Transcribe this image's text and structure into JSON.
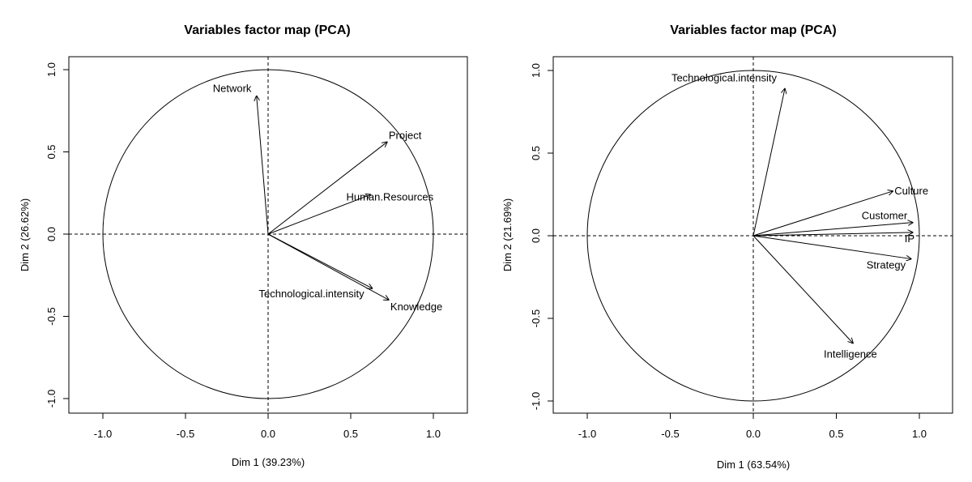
{
  "chart_data": [
    {
      "type": "scatter",
      "title": "Variables factor map (PCA)",
      "xlabel": "Dim 1 (39.23%)",
      "ylabel": "Dim 2 (26.62%)",
      "xlim": [
        -1.2,
        1.2
      ],
      "ylim": [
        -1.1,
        1.1
      ],
      "x_ticks": [
        -1.0,
        -0.5,
        0.0,
        0.5,
        1.0
      ],
      "y_ticks": [
        -1.0,
        -0.5,
        0.0,
        0.5,
        1.0
      ],
      "x_tick_labels": [
        "-1.0",
        "-0.5",
        "0.0",
        "0.5",
        "1.0"
      ],
      "y_tick_labels": [
        "-1.0",
        "-0.5",
        "0.0",
        "0.5",
        "1.0"
      ],
      "unit_circle": true,
      "variables": [
        {
          "name": "Network",
          "x": -0.07,
          "y": 0.84
        },
        {
          "name": "Project",
          "x": 0.72,
          "y": 0.56
        },
        {
          "name": "Human.Resources",
          "x": 0.62,
          "y": 0.24
        },
        {
          "name": "Technological.intensity",
          "x": 0.63,
          "y": -0.33
        },
        {
          "name": "Knowledge",
          "x": 0.73,
          "y": -0.4
        }
      ]
    },
    {
      "type": "scatter",
      "title": "Variables factor map (PCA)",
      "xlabel": "Dim 1 (63.54%)",
      "ylabel": "Dim 2 (21.69%)",
      "xlim": [
        -1.2,
        1.2
      ],
      "ylim": [
        -1.1,
        1.1
      ],
      "x_ticks": [
        -1.0,
        -0.5,
        0.0,
        0.5,
        1.0
      ],
      "y_ticks": [
        -1.0,
        -0.5,
        0.0,
        0.5,
        1.0
      ],
      "x_tick_labels": [
        "-1.0",
        "-0.5",
        "0.0",
        "0.5",
        "1.0"
      ],
      "y_tick_labels": [
        "-1.0",
        "-0.5",
        "0.0",
        "0.5",
        "1.0"
      ],
      "unit_circle": true,
      "variables": [
        {
          "name": "Technological.intensity",
          "x": 0.19,
          "y": 0.89
        },
        {
          "name": "Culture",
          "x": 0.84,
          "y": 0.27
        },
        {
          "name": "Customer",
          "x": 0.96,
          "y": 0.08
        },
        {
          "name": "IP",
          "x": 0.96,
          "y": 0.02
        },
        {
          "name": "Strategy",
          "x": 0.95,
          "y": -0.14
        },
        {
          "name": "Intelligence",
          "x": 0.6,
          "y": -0.65
        }
      ]
    }
  ]
}
